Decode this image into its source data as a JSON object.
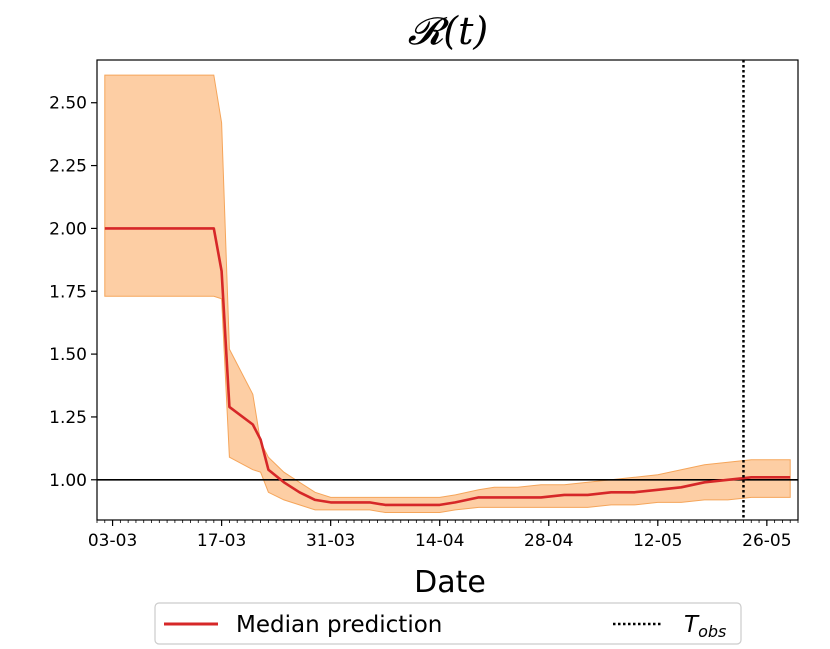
{
  "chart_data": {
    "type": "line",
    "title": "𝓡(t)",
    "xlabel": "Date",
    "ylabel": "",
    "x_tick_labels": [
      "03-03",
      "17-03",
      "31-03",
      "14-04",
      "28-04",
      "12-05",
      "26-05"
    ],
    "y_tick_labels": [
      "1.00",
      "1.25",
      "1.50",
      "1.75",
      "2.00",
      "2.25",
      "2.50"
    ],
    "ylim": [
      0.84,
      2.67
    ],
    "x_range": [
      "01-03",
      "30-05"
    ],
    "x_tick_dates": [
      "03-03",
      "17-03",
      "31-03",
      "14-04",
      "28-04",
      "12-05",
      "26-05"
    ],
    "y_ticks": [
      1.0,
      1.25,
      1.5,
      1.75,
      2.0,
      2.25,
      2.5
    ],
    "grid": false,
    "legend_position": "bottom-outside",
    "series": [
      {
        "name": "Median prediction",
        "color": "#d62728",
        "x": [
          "02-03",
          "05-03",
          "08-03",
          "11-03",
          "14-03",
          "16-03",
          "17-03",
          "18-03",
          "21-03",
          "22-03",
          "23-03",
          "25-03",
          "27-03",
          "29-03",
          "31-03",
          "02-04",
          "05-04",
          "07-04",
          "10-04",
          "14-04",
          "16-04",
          "19-04",
          "21-04",
          "24-04",
          "27-04",
          "30-04",
          "03-05",
          "06-05",
          "09-05",
          "12-05",
          "15-05",
          "18-05",
          "21-05",
          "24-05",
          "27-05",
          "29-05"
        ],
        "values": [
          2.0,
          2.0,
          2.0,
          2.0,
          2.0,
          2.0,
          1.83,
          1.29,
          1.22,
          1.16,
          1.04,
          0.99,
          0.95,
          0.92,
          0.91,
          0.91,
          0.91,
          0.9,
          0.9,
          0.9,
          0.91,
          0.93,
          0.93,
          0.93,
          0.93,
          0.94,
          0.94,
          0.95,
          0.95,
          0.96,
          0.97,
          0.99,
          1.0,
          1.01,
          1.01,
          1.01
        ]
      }
    ],
    "band": {
      "color": "#fdc594",
      "x": [
        "02-03",
        "05-03",
        "08-03",
        "11-03",
        "14-03",
        "16-03",
        "17-03",
        "18-03",
        "21-03",
        "22-03",
        "23-03",
        "25-03",
        "27-03",
        "29-03",
        "31-03",
        "02-04",
        "05-04",
        "07-04",
        "10-04",
        "14-04",
        "16-04",
        "19-04",
        "21-04",
        "24-04",
        "27-04",
        "30-04",
        "03-05",
        "06-05",
        "09-05",
        "12-05",
        "15-05",
        "18-05",
        "21-05",
        "24-05",
        "27-05",
        "29-05"
      ],
      "upper": [
        2.61,
        2.61,
        2.61,
        2.61,
        2.61,
        2.61,
        2.42,
        1.52,
        1.34,
        1.15,
        1.09,
        1.03,
        0.99,
        0.95,
        0.93,
        0.93,
        0.93,
        0.93,
        0.93,
        0.93,
        0.94,
        0.96,
        0.97,
        0.97,
        0.98,
        0.98,
        0.99,
        1.0,
        1.01,
        1.02,
        1.04,
        1.06,
        1.07,
        1.08,
        1.08,
        1.08
      ],
      "lower": [
        1.73,
        1.73,
        1.73,
        1.73,
        1.73,
        1.73,
        1.72,
        1.09,
        1.04,
        1.03,
        0.95,
        0.92,
        0.9,
        0.88,
        0.88,
        0.88,
        0.88,
        0.87,
        0.87,
        0.87,
        0.88,
        0.89,
        0.89,
        0.89,
        0.89,
        0.89,
        0.89,
        0.9,
        0.9,
        0.91,
        0.91,
        0.92,
        0.92,
        0.93,
        0.93,
        0.93
      ]
    },
    "reference_line_y": 1.0,
    "t_obs_date": "23-05",
    "t_obs_label_main": "T",
    "t_obs_label_sub": "obs"
  }
}
